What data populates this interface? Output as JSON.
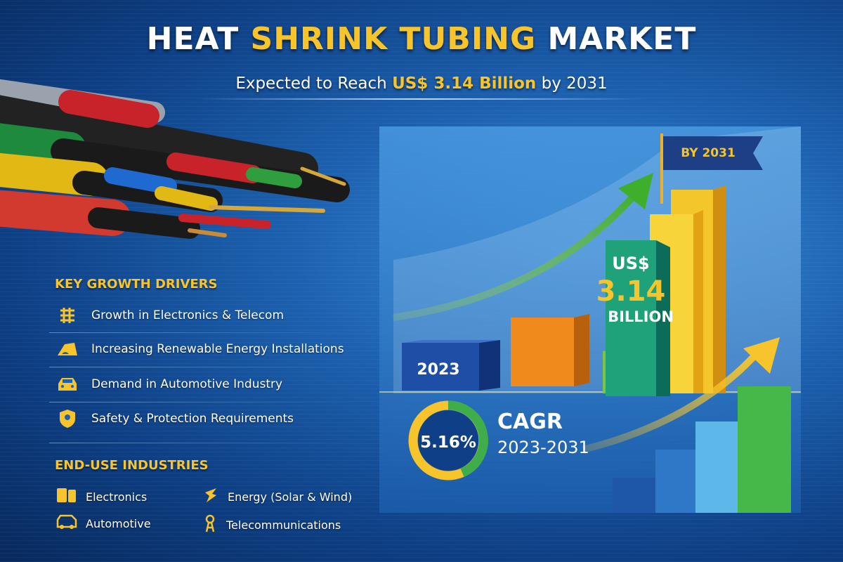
{
  "title": {
    "part1": "HEAT ",
    "part2": "SHRINK TUBING",
    "part3": " MARKET"
  },
  "subtitle": {
    "prefix": "Expected to Reach ",
    "value": "US$ 3.14 Billion",
    "suffix": " by 2031"
  },
  "drivers": {
    "heading": "KEY GROWTH DRIVERS",
    "items": [
      {
        "icon": "circuit-icon",
        "label": "Growth in Electronics & Telecom"
      },
      {
        "icon": "solar-panel-icon",
        "label": "Increasing Renewable Energy Installations"
      },
      {
        "icon": "car-icon",
        "label": "Demand in Automotive Industry"
      },
      {
        "icon": "shield-icon",
        "label": "Safety & Protection Requirements"
      }
    ]
  },
  "industries": {
    "heading": "END-USE INDUSTRIES",
    "items": [
      {
        "icon": "electronics-icon",
        "label": "Electronics"
      },
      {
        "icon": "energy-icon",
        "label": "Energy (Solar & Wind)"
      },
      {
        "icon": "vehicle-icon",
        "label": "Automotive"
      },
      {
        "icon": "telecom-tower-icon",
        "label": "Telecommunications"
      }
    ]
  },
  "chart": {
    "start_label": "2023",
    "flag_label": "BY 2031",
    "value_prefix": "US$",
    "value": "3.14",
    "value_unit": "BILLION",
    "cagr_value": "5.16%",
    "cagr_label": "CAGR",
    "cagr_period": "2023-2031"
  },
  "colors": {
    "accent": "#f7c52b",
    "background": "#1d62b0"
  }
}
